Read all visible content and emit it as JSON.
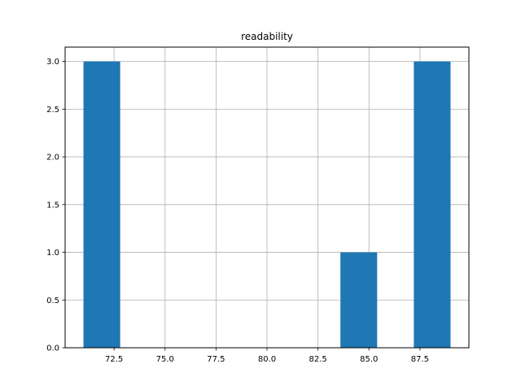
{
  "chart_data": {
    "type": "bar",
    "subtype": "histogram",
    "title": "readability",
    "xlabel": "",
    "ylabel": "",
    "bins": [
      {
        "x0": 71.0,
        "x1": 72.8,
        "count": 3
      },
      {
        "x0": 72.8,
        "x1": 74.6,
        "count": 0
      },
      {
        "x0": 74.6,
        "x1": 76.4,
        "count": 0
      },
      {
        "x0": 76.4,
        "x1": 78.2,
        "count": 0
      },
      {
        "x0": 78.2,
        "x1": 80.0,
        "count": 0
      },
      {
        "x0": 80.0,
        "x1": 81.8,
        "count": 0
      },
      {
        "x0": 81.8,
        "x1": 83.6,
        "count": 0
      },
      {
        "x0": 83.6,
        "x1": 85.4,
        "count": 1
      },
      {
        "x0": 85.4,
        "x1": 87.2,
        "count": 0
      },
      {
        "x0": 87.2,
        "x1": 89.0,
        "count": 3
      }
    ],
    "xlim": [
      70.1,
      89.9
    ],
    "ylim": [
      0,
      3.15
    ],
    "xticks": [
      72.5,
      75.0,
      77.5,
      80.0,
      82.5,
      85.0,
      87.5
    ],
    "xtick_labels": [
      "72.5",
      "75.0",
      "77.5",
      "80.0",
      "82.5",
      "85.0",
      "87.5"
    ],
    "yticks": [
      0,
      0.5,
      1.0,
      1.5,
      2.0,
      2.5,
      3.0
    ],
    "ytick_labels": [
      "0.0",
      "0.5",
      "1.0",
      "1.5",
      "2.0",
      "2.5",
      "3.0"
    ],
    "grid": true,
    "bar_color": "#1f77b4",
    "grid_color": "#b0b0b0"
  }
}
